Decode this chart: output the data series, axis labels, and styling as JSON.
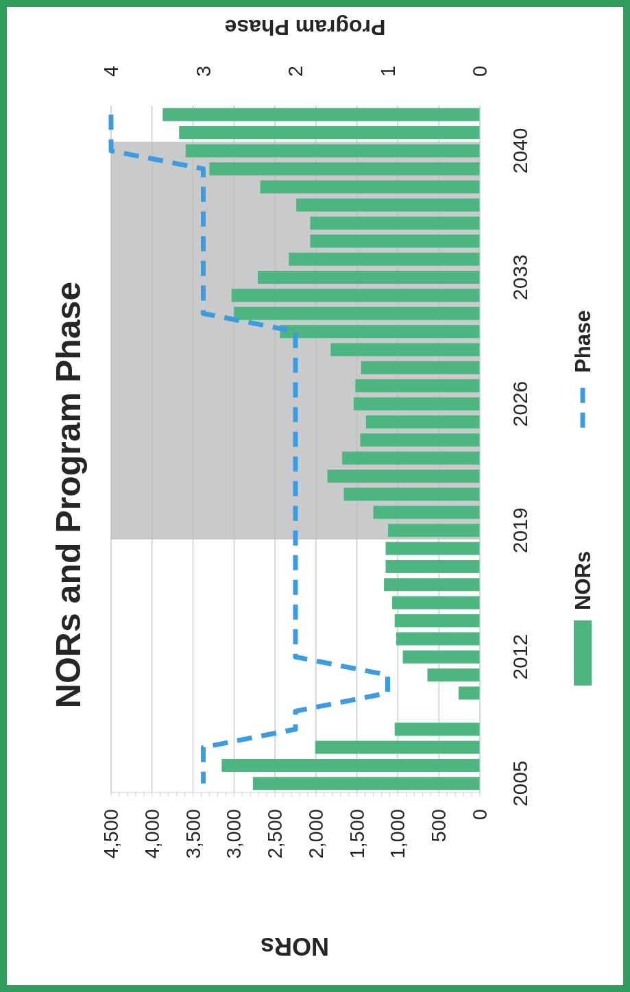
{
  "chart_data": {
    "type": "bar",
    "orientation": "horizontal",
    "title": "NORs and Program Phase",
    "xlabel": "NORs",
    "x2label": "Program Phase",
    "categories": [
      null,
      null,
      "2040",
      null,
      null,
      null,
      null,
      null,
      null,
      "2033",
      null,
      null,
      null,
      null,
      null,
      null,
      "2026",
      null,
      null,
      null,
      null,
      null,
      null,
      "2019",
      null,
      null,
      null,
      null,
      null,
      null,
      "2012",
      null,
      null,
      null,
      null,
      null,
      null,
      "2005"
    ],
    "xlim": [
      4500,
      0
    ],
    "xticks": [
      {
        "value": 4500,
        "label": "4,500"
      },
      {
        "value": 4000,
        "label": "4,000"
      },
      {
        "value": 3500,
        "label": "3,500"
      },
      {
        "value": 3000,
        "label": "3,000"
      },
      {
        "value": 2500,
        "label": "2,500"
      },
      {
        "value": 2000,
        "label": "2,000"
      },
      {
        "value": 1500,
        "label": "1,500"
      },
      {
        "value": 1000,
        "label": "1,000"
      },
      500,
      0
    ],
    "x2lim": [
      4,
      0
    ],
    "x2ticks": [
      4,
      3,
      2,
      1,
      0
    ],
    "series": [
      {
        "name": "NORs",
        "color": "#4db57f",
        "values": [
          3870,
          3670,
          3590,
          3300,
          2680,
          2240,
          2070,
          2070,
          2330,
          2710,
          3030,
          3000,
          2440,
          1820,
          1450,
          1520,
          1540,
          1390,
          1460,
          1680,
          1860,
          1660,
          1300,
          1120,
          1150,
          1150,
          1170,
          1070,
          1040,
          1020,
          940,
          640,
          260,
          null,
          1040,
          2010,
          3150,
          2770
        ]
      },
      {
        "name": "Phase",
        "type": "line",
        "axis": "x2",
        "color": "#3d9be0",
        "line_style": "dashed",
        "values": [
          4,
          4,
          4,
          3,
          3,
          3,
          3,
          3,
          3,
          3,
          3,
          3,
          2,
          2,
          2,
          2,
          2,
          2,
          2,
          2,
          2,
          2,
          2,
          2,
          2,
          2,
          2,
          2,
          2,
          2,
          2,
          1,
          1,
          2,
          2,
          3,
          3,
          3
        ]
      }
    ],
    "bands": [
      {
        "axis": "y",
        "from": "2040",
        "to": "2019",
        "color": "#c9cacc"
      }
    ],
    "grid": "x",
    "legend": "right"
  }
}
